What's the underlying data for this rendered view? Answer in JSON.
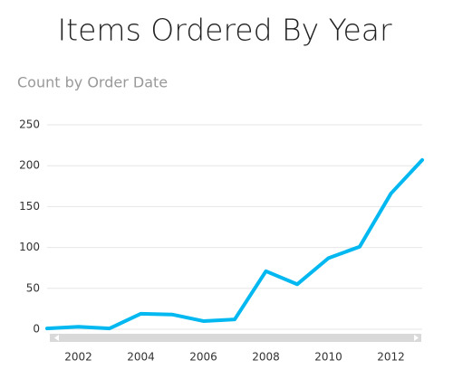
{
  "chart_data": {
    "type": "line",
    "title": "Items Ordered By Year",
    "subtitle": "Count by Order Date",
    "x": [
      2001,
      2002,
      2003,
      2004,
      2005,
      2006,
      2007,
      2008,
      2009,
      2010,
      2011,
      2012,
      2013
    ],
    "series": [
      {
        "color": "#01b8f0",
        "values": [
          1,
          3,
          1,
          19,
          18,
          10,
          12,
          71,
          55,
          87,
          101,
          166,
          207
        ]
      }
    ],
    "xlim": [
      2001,
      2013
    ],
    "xticks": [
      2002,
      2004,
      2006,
      2008,
      2010,
      2012
    ],
    "ylim": [
      0,
      250
    ],
    "yticks": [
      0,
      50,
      100,
      150,
      200,
      250
    ],
    "grid": true
  }
}
